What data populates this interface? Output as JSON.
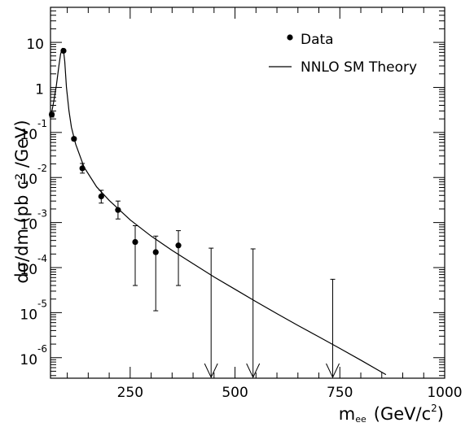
{
  "chart_data": {
    "type": "scatter",
    "title": "",
    "xlabel": "m",
    "xlabel_sub": "ee",
    "xlabel_units": "(GeV/c",
    "xlabel_units_sup": "2",
    "xlabel_units_end": ")",
    "ylabel": "dσ/dm (pb c² /GeV)",
    "xlim": [
      60,
      1000
    ],
    "ylim": [
      3.5e-07,
      60
    ],
    "yscale": "log",
    "x_ticks": [
      250,
      500,
      750,
      1000
    ],
    "x_tick_labels": [
      "250",
      "500",
      "750",
      "1000"
    ],
    "y_ticks": [
      {
        "value": 10,
        "base": "10",
        "exp": ""
      },
      {
        "value": 1,
        "base": "1",
        "exp": ""
      },
      {
        "value": 0.1,
        "base": "10",
        "exp": "-1"
      },
      {
        "value": 0.01,
        "base": "10",
        "exp": "-2"
      },
      {
        "value": 0.001,
        "base": "10",
        "exp": "-3"
      },
      {
        "value": 0.0001,
        "base": "10",
        "exp": "-4"
      },
      {
        "value": 1e-05,
        "base": "10",
        "exp": "-5"
      },
      {
        "value": 1e-06,
        "base": "10",
        "exp": "-6"
      }
    ],
    "legend_position": "top-right",
    "series": [
      {
        "name": "Data",
        "kind": "points_with_errors",
        "points": [
          {
            "x": 63,
            "y": 0.25,
            "lo": 0.22,
            "hi": 0.28
          },
          {
            "x": 91,
            "y": 6.5,
            "lo": 6.3,
            "hi": 6.7
          },
          {
            "x": 116,
            "y": 0.072,
            "lo": 0.066,
            "hi": 0.078
          },
          {
            "x": 136,
            "y": 0.016,
            "lo": 0.0125,
            "hi": 0.0205
          },
          {
            "x": 181,
            "y": 0.0038,
            "lo": 0.0027,
            "hi": 0.0052
          },
          {
            "x": 221,
            "y": 0.0019,
            "lo": 0.0012,
            "hi": 0.003
          },
          {
            "x": 262,
            "y": 0.00037,
            "lo": 4e-05,
            "hi": 0.00085
          },
          {
            "x": 311,
            "y": 0.00022,
            "lo": 1.1e-05,
            "hi": 0.0005
          },
          {
            "x": 365,
            "y": 0.00031,
            "lo": 4e-05,
            "hi": 0.00066
          }
        ],
        "upper_limits": [
          {
            "x": 443,
            "hi": 0.00027
          },
          {
            "x": 543,
            "hi": 0.00026
          },
          {
            "x": 733,
            "hi": 5.5e-05
          }
        ]
      },
      {
        "name": "NNLO SM Theory",
        "kind": "line",
        "x": [
          62,
          68,
          74,
          80,
          84,
          88,
          91,
          94,
          98,
          104,
          110,
          120,
          140,
          170,
          200,
          250,
          300,
          350,
          400,
          450,
          500,
          550,
          600,
          650,
          700,
          750,
          800,
          860
        ],
        "y": [
          0.25,
          0.5,
          1.1,
          3.0,
          5.5,
          7.2,
          6.5,
          3.8,
          1.0,
          0.3,
          0.13,
          0.055,
          0.017,
          0.0062,
          0.0031,
          0.00115,
          0.0005,
          0.00024,
          0.000122,
          6.2e-05,
          3.3e-05,
          1.75e-05,
          9.5e-06,
          5.2e-06,
          2.9e-06,
          1.6e-06,
          8.8e-07,
          4.2e-07
        ]
      }
    ]
  }
}
